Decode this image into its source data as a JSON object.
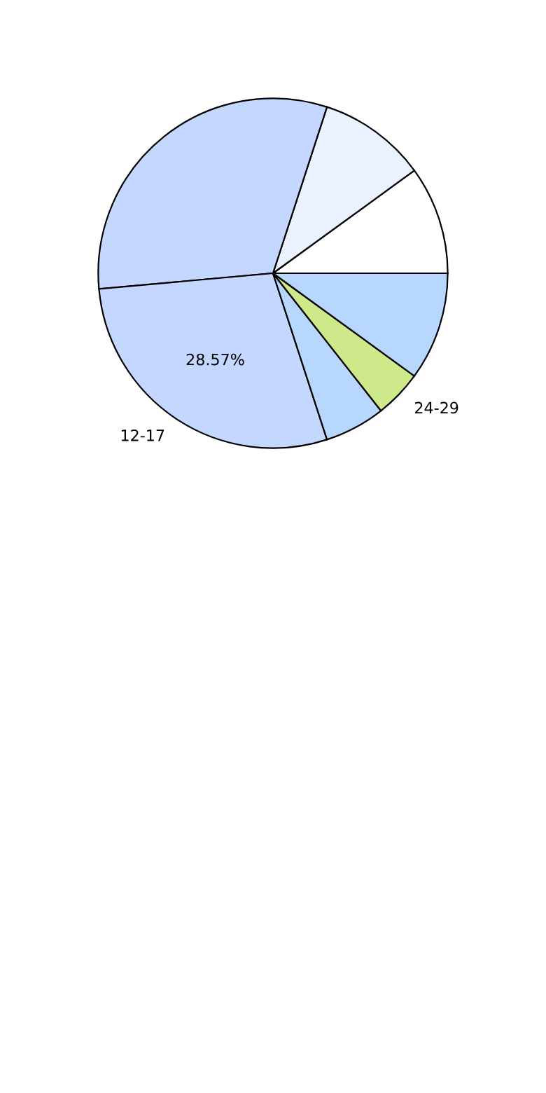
{
  "chart_data": {
    "type": "pie",
    "categories": [
      null,
      null,
      null,
      "12-17",
      null,
      "24-29",
      null
    ],
    "values": [
      10,
      10,
      31.43,
      28.57,
      5.6,
      4.4,
      10
    ],
    "colors": [
      "#ffffff",
      "#eaf1ff",
      "#c4d8ff",
      "#c4d8ff",
      "#b7d7ff",
      "#cde98a",
      "#b7d7ff"
    ],
    "value_labels": [
      null,
      null,
      null,
      "28.57%",
      null,
      null,
      null
    ]
  }
}
